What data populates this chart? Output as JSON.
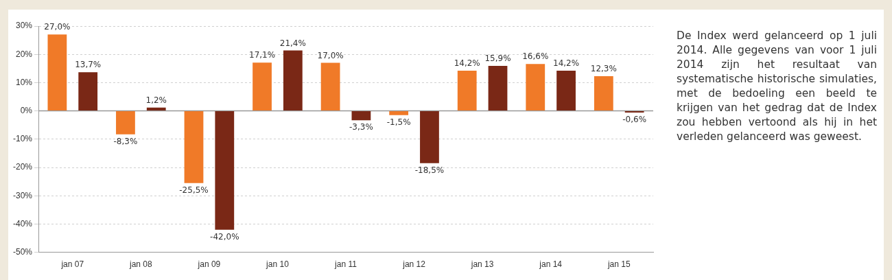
{
  "chart_data": {
    "type": "bar",
    "categories": [
      "jan 07",
      "jan 08",
      "jan 09",
      "jan 10",
      "jan 11",
      "jan 12",
      "jan 13",
      "jan 14",
      "jan 15"
    ],
    "series": [
      {
        "color": "#f07a28",
        "values": [
          27.0,
          -8.3,
          -25.5,
          17.1,
          17.0,
          -1.5,
          14.2,
          16.6,
          12.3
        ],
        "value_labels": [
          "27,0%",
          "-8,3%",
          "-25,5%",
          "17,1%",
          "17,0%",
          "-1,5%",
          "14,2%",
          "16,6%",
          "12,3%"
        ]
      },
      {
        "color": "#7a2816",
        "values": [
          13.7,
          1.2,
          -42.0,
          21.4,
          -3.3,
          -18.5,
          15.9,
          14.2,
          -0.6
        ],
        "value_labels": [
          "13,7%",
          "1,2%",
          "-42,0%",
          "21,4%",
          "-3,3%",
          "-18,5%",
          "15,9%",
          "14,2%",
          "-0,6%"
        ]
      }
    ],
    "ylim": [
      -50,
      30
    ],
    "yticks": [
      {
        "value": 30,
        "label": "30%"
      },
      {
        "value": 20,
        "label": "20%"
      },
      {
        "value": 10,
        "label": "10%"
      },
      {
        "value": 0,
        "label": "0%"
      },
      {
        "value": -10,
        "label": "-10%"
      },
      {
        "value": -20,
        "label": "-20%"
      },
      {
        "value": -30,
        "label": "-30%"
      },
      {
        "value": -40,
        "label": "-40%"
      },
      {
        "value": -50,
        "label": "-50%"
      }
    ],
    "grid": "y",
    "ref_lines": [
      {
        "axis": "y",
        "value": 0,
        "color": "#999999"
      }
    ],
    "annotations": [
      "De Index werd gelanceerd op 1 juli 2014. Alle gegevens van voor 1 juli 2014 zijn het resultaat van systematische historische simulaties, met de bedoeling een beeld te krijgen van het gedrag dat de Index zou hebben vertoond als hij in het verleden gelanceerd was geweest."
    ]
  }
}
